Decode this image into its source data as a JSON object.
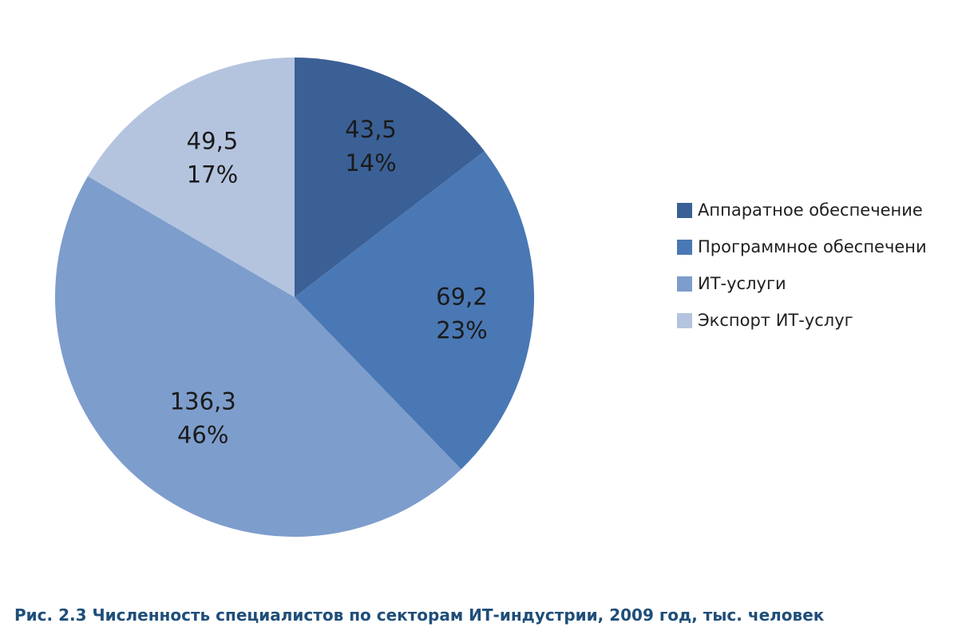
{
  "chart_data": {
    "type": "pie",
    "categories": [
      "Аппаратное обеспечение",
      "Программное обеспечение",
      "ИТ-услуги",
      "Экспорт ИТ-услуг"
    ],
    "values": [
      43.5,
      69.2,
      136.3,
      49.5
    ],
    "value_labels": [
      "43,5",
      "69,2",
      "136,3",
      "49,5"
    ],
    "percent_labels": [
      "14%",
      "23%",
      "46%",
      "17%"
    ],
    "colors": [
      "#3b6096",
      "#4a78b4",
      "#7d9dcc",
      "#b4c4df"
    ],
    "start_angle_deg": 0,
    "direction": "clockwise",
    "legend": {
      "position": "right",
      "entries": [
        "Аппаратное обеспечение",
        "Программное обеспечени",
        "ИТ-услуги",
        "Экспорт ИТ-услуг"
      ]
    },
    "caption": "Рис. 2.3 Численность специалистов по секторам ИТ-индустрии, 2009 год, тыс. человек"
  }
}
